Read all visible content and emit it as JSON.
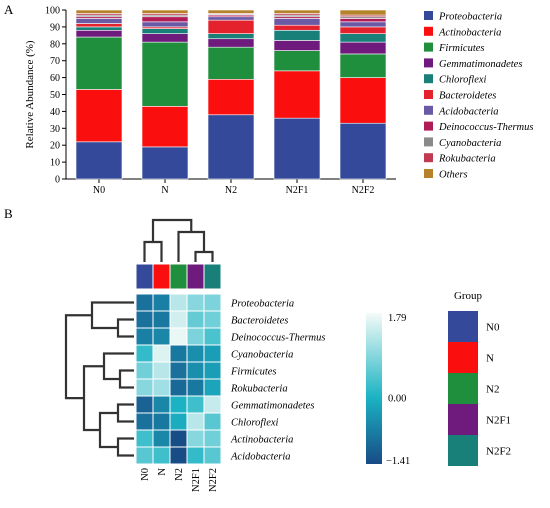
{
  "panels": {
    "a_label": "A",
    "b_label": "B"
  },
  "chart_data": [
    {
      "type": "bar",
      "stacked": true,
      "ylabel": "Relative Abundance (%)",
      "xlabel": "",
      "ylim": [
        0,
        100
      ],
      "yticks": [
        0,
        10,
        20,
        30,
        40,
        50,
        60,
        70,
        80,
        90,
        100
      ],
      "grid": false,
      "legend_position": "right",
      "categories": [
        "N0",
        "N",
        "N2",
        "N2F1",
        "N2F2"
      ],
      "series": [
        {
          "name": "Proteobacteria",
          "color": "#34499a",
          "values": [
            22,
            19,
            38,
            36,
            33
          ]
        },
        {
          "name": "Actinobacteria",
          "color": "#fa0e0e",
          "values": [
            31,
            24,
            21,
            28,
            27
          ]
        },
        {
          "name": "Firmicutes",
          "color": "#1f8e3d",
          "values": [
            31,
            38,
            19,
            12,
            14
          ]
        },
        {
          "name": "Gemmatimonadetes",
          "color": "#6f1a7d",
          "values": [
            4,
            5,
            5,
            6,
            7
          ]
        },
        {
          "name": "Chloroflexi",
          "color": "#188079",
          "values": [
            2,
            3,
            3,
            6,
            5
          ]
        },
        {
          "name": "Bacteroidetes",
          "color": "#e4222e",
          "values": [
            2,
            1,
            8,
            3,
            4
          ]
        },
        {
          "name": "Acidobacteria",
          "color": "#6a5aa6",
          "values": [
            3,
            3,
            2,
            4,
            3
          ]
        },
        {
          "name": "Deinococcus-Thermus",
          "color": "#b11b57",
          "values": [
            1,
            3,
            1,
            1,
            2
          ]
        },
        {
          "name": "Cyanobacteria",
          "color": "#8a8a8a",
          "values": [
            1,
            1,
            0.5,
            1,
            1
          ]
        },
        {
          "name": "Rokubacteria",
          "color": "#c23a51",
          "values": [
            1,
            1,
            0.5,
            1,
            1
          ]
        },
        {
          "name": "Others",
          "color": "#b5842a",
          "values": [
            2,
            2,
            2,
            2,
            3
          ]
        }
      ]
    },
    {
      "type": "heatmap",
      "columns": [
        "N0",
        "N",
        "N2",
        "N2F1",
        "N2F2"
      ],
      "rows": [
        "Proteobacteria",
        "Bacteroidetes",
        "Deinococcus-Thermus",
        "Cyanobacteria",
        "Firmicutes",
        "Rokubacteria",
        "Gemmatimonadetes",
        "Chloroflexi",
        "Actinobacteria",
        "Acidobacteria"
      ],
      "values": [
        [
          -0.9,
          -0.7,
          1.3,
          0.9,
          0.8
        ],
        [
          -0.9,
          -0.8,
          1.5,
          0.6,
          0.7
        ],
        [
          -0.7,
          -0.6,
          1.7,
          0.8,
          0.4
        ],
        [
          0.2,
          1.6,
          -0.8,
          -0.5,
          -0.3
        ],
        [
          0.7,
          1.3,
          -0.9,
          -0.5,
          -0.3
        ],
        [
          0.9,
          1.1,
          -1.0,
          -0.8,
          -0.2
        ],
        [
          -1.1,
          -0.6,
          0.0,
          0.3,
          1.4
        ],
        [
          -0.9,
          -0.8,
          -0.1,
          1.3,
          0.5
        ],
        [
          0.3,
          -0.6,
          -1.4,
          0.9,
          0.7
        ],
        [
          0.5,
          0.3,
          -1.4,
          0.2,
          0.5
        ]
      ],
      "color_scale": {
        "min": -1.41,
        "mid": 0.0,
        "max": 1.79,
        "min_label": "−1.41",
        "mid_label": "0.00",
        "max_label": "1.79",
        "colors": [
          "#184b86",
          "#1bb3c3",
          "#f4fbf8"
        ]
      },
      "group_legend": {
        "title": "Group",
        "items": [
          {
            "label": "N0",
            "color": "#34499a"
          },
          {
            "label": "N",
            "color": "#fa0e0e"
          },
          {
            "label": "N2",
            "color": "#1f8e3d"
          },
          {
            "label": "N2F1",
            "color": "#6f1a7d"
          },
          {
            "label": "N2F2",
            "color": "#188079"
          }
        ]
      }
    }
  ]
}
